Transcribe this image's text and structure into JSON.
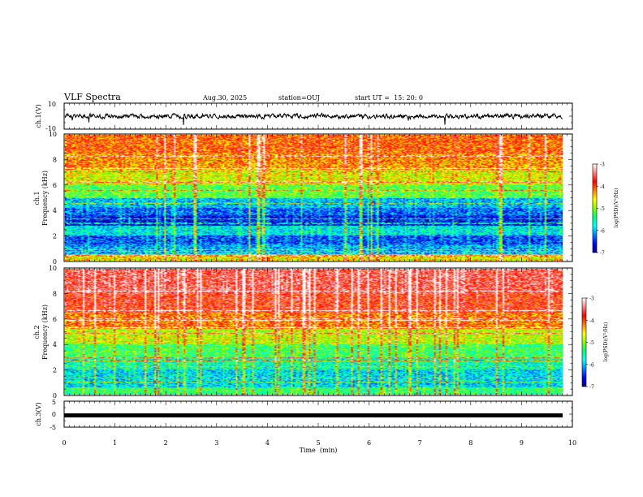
{
  "header": {
    "title": "VLF Spectra",
    "date": "Aug.30, 2025",
    "station": "station=OUJ",
    "start": "start UT =  15: 20: 0"
  },
  "colors": {
    "colormap": [
      "#000080",
      "#0000ff",
      "#0080ff",
      "#00ffff",
      "#00ff80",
      "#80ff00",
      "#ffff00",
      "#ff8000",
      "#ff0000",
      "#ff8080",
      "#ffffff"
    ]
  },
  "chart_data": [
    {
      "type": "line",
      "id": "ch1-waveform",
      "ylabel": "ch.1(V)",
      "ylim": [
        -10,
        10
      ],
      "yticks": [
        "10",
        "-10"
      ],
      "xlim": [
        0,
        10
      ],
      "trend": "noisy waveform centred near 0 V, typically about -2 to 2 V with short spikes to about +8 V and -7 V"
    },
    {
      "type": "heatmap",
      "id": "ch1-spectrogram",
      "ylabel": "ch.1\nFrequency (kHz)",
      "ylim": [
        0,
        10
      ],
      "yticks": [
        "0",
        "2",
        "4",
        "6",
        "8",
        "10"
      ],
      "xlim": [
        0,
        9.8
      ],
      "colorbar": {
        "label": "log(PSD)(V²/Hz)",
        "range": [
          -7,
          -3
        ],
        "ticks": [
          "-3",
          "-4",
          "-5",
          "-6",
          "-7"
        ]
      },
      "bands": [
        {
          "from": 0,
          "to": 0.5,
          "level": -4.6
        },
        {
          "from": 0.5,
          "to": 1.3,
          "level": -6.1
        },
        {
          "from": 1.3,
          "to": 2.0,
          "level": -6.4
        },
        {
          "from": 2.0,
          "to": 2.8,
          "level": -5.8
        },
        {
          "from": 2.8,
          "to": 3.6,
          "level": -6.6
        },
        {
          "from": 3.6,
          "to": 4.2,
          "level": -6.3
        },
        {
          "from": 4.2,
          "to": 5.0,
          "level": -6.0
        },
        {
          "from": 5.0,
          "to": 6.0,
          "level": -5.2
        },
        {
          "from": 6.0,
          "to": 7.2,
          "level": -4.7
        },
        {
          "from": 7.2,
          "to": 8.5,
          "level": -4.3
        },
        {
          "from": 8.5,
          "to": 10.0,
          "level": -4.1
        }
      ]
    },
    {
      "type": "heatmap",
      "id": "ch2-spectrogram",
      "ylabel": "ch.2\nFrequency (kHz)",
      "ylim": [
        0,
        10
      ],
      "yticks": [
        "0",
        "2",
        "4",
        "6",
        "8",
        "10"
      ],
      "xlim": [
        0,
        9.8
      ],
      "colorbar": {
        "label": "log(PSD)(V²/Hz)",
        "range": [
          -7,
          -3
        ],
        "ticks": [
          "-3",
          "-4",
          "-5",
          "-6",
          "-7"
        ]
      },
      "bands": [
        {
          "from": 0,
          "to": 0.6,
          "level": -5.4
        },
        {
          "from": 0.6,
          "to": 2.0,
          "level": -5.9
        },
        {
          "from": 2.0,
          "to": 3.0,
          "level": -5.6
        },
        {
          "from": 3.0,
          "to": 4.0,
          "level": -5.3
        },
        {
          "from": 4.0,
          "to": 5.2,
          "level": -4.8
        },
        {
          "from": 5.2,
          "to": 6.5,
          "level": -4.2
        },
        {
          "from": 6.5,
          "to": 8.0,
          "level": -3.8
        },
        {
          "from": 8.0,
          "to": 10.0,
          "level": -3.6
        }
      ]
    },
    {
      "type": "line",
      "id": "ch3-waveform",
      "ylabel": "ch.3(V)",
      "ylim": [
        -5,
        5
      ],
      "yticks": [
        "5",
        "0",
        "-5"
      ],
      "xlim": [
        0,
        10
      ],
      "xlabel": "Time  (min)",
      "xticks": [
        "0",
        "1",
        "2",
        "3",
        "4",
        "5",
        "6",
        "7",
        "8",
        "9",
        "10"
      ],
      "trend": "flat constant trace near 0 V across the whole record"
    }
  ]
}
